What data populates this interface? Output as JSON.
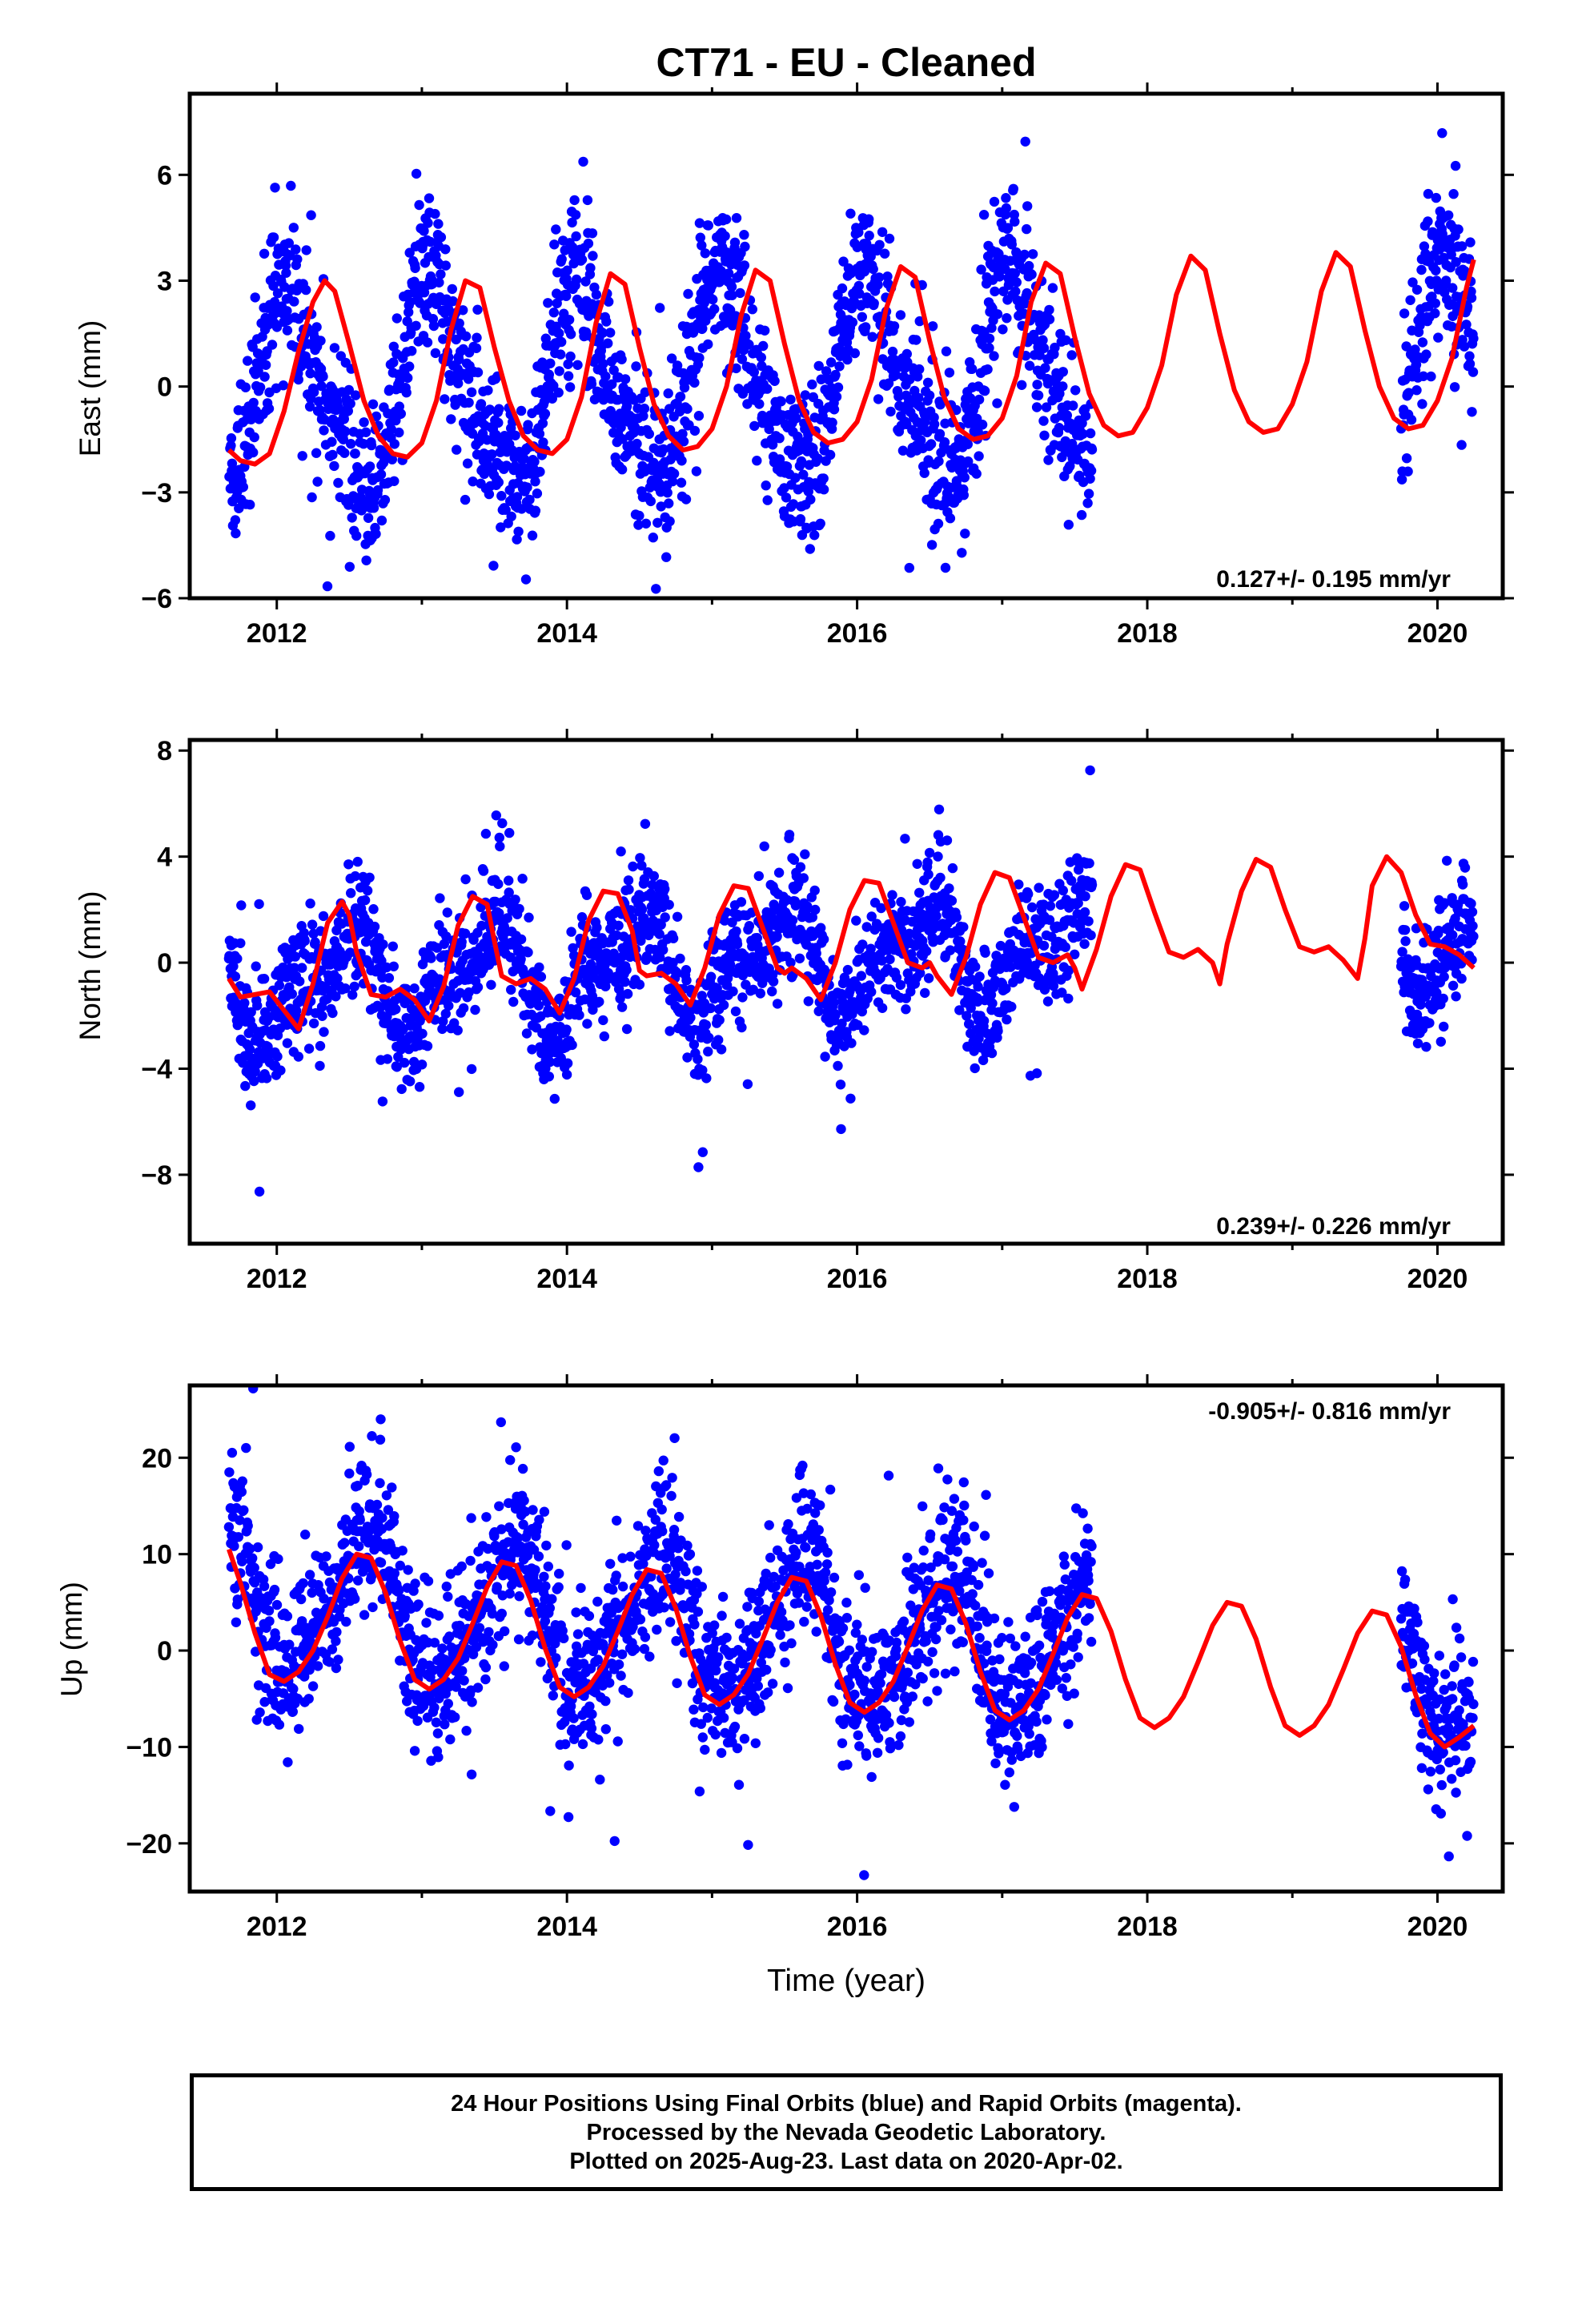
{
  "title": "CT71  - EU - Cleaned",
  "xlabel": "Time (year)",
  "footer": {
    "line1": "24 Hour Positions Using Final Orbits (blue) and Rapid Orbits (magenta).",
    "line2": "Processed by the Nevada Geodetic Laboratory.",
    "line3": "Plotted on 2025-Aug-23. Last data on 2020-Apr-02."
  },
  "colors": {
    "points": "#0000ff",
    "model": "#ff0000",
    "axes": "#000000"
  },
  "chart_data": [
    {
      "type": "scatter",
      "component": "east",
      "ylabel": "East (mm)",
      "xlim": [
        2011.4,
        2020.45
      ],
      "ylim": [
        -6,
        8.3
      ],
      "xticks": [
        2012,
        2014,
        2016,
        2018,
        2020
      ],
      "yticks": [
        -6,
        -3,
        0,
        3,
        6
      ],
      "ytick_labels": [
        "−6",
        "−3",
        "0",
        "3",
        "6"
      ],
      "rate_label": "0.127+/- 0.195 mm/yr",
      "rate_position": "bottom-right",
      "observation_segments": [
        [
          2011.67,
          2017.62
        ],
        [
          2019.75,
          2020.25
        ]
      ],
      "scatter_model": {
        "amp1": 2.7,
        "phase1": 0.08,
        "amp2": 0.55,
        "phase2": 0.0,
        "offset": 0.3,
        "trend": 0.127,
        "ref_year": 2016.0,
        "noise_sd": 1.1,
        "outlier_sd": 2.2
      },
      "fit_curve": {
        "x": [
          2011.67,
          2011.75,
          2011.85,
          2011.95,
          2012.05,
          2012.15,
          2012.25,
          2012.33,
          2012.4,
          2012.5,
          2012.6,
          2012.7,
          2012.8,
          2012.9,
          2013.0,
          2013.1,
          2013.2,
          2013.3,
          2013.4,
          2013.5,
          2013.6,
          2013.7,
          2013.8,
          2013.9,
          2014.0,
          2014.1,
          2014.2,
          2014.3,
          2014.4,
          2014.5,
          2014.6,
          2014.7,
          2014.8,
          2014.9,
          2015.0,
          2015.1,
          2015.2,
          2015.3,
          2015.4,
          2015.5,
          2015.6,
          2015.7,
          2015.8,
          2015.9,
          2016.0,
          2016.1,
          2016.2,
          2016.3,
          2016.4,
          2016.5,
          2016.6,
          2016.7,
          2016.8,
          2016.9,
          2017.0,
          2017.1,
          2017.2,
          2017.3,
          2017.4,
          2017.5,
          2017.6,
          2017.7,
          2017.8,
          2017.9,
          2018.0,
          2018.1,
          2018.2,
          2018.3,
          2018.4,
          2018.5,
          2018.6,
          2018.7,
          2018.8,
          2018.9,
          2019.0,
          2019.1,
          2019.2,
          2019.3,
          2019.4,
          2019.5,
          2019.6,
          2019.7,
          2019.8,
          2019.9,
          2020.0,
          2020.1,
          2020.2,
          2020.25
        ],
        "y": [
          -1.8,
          -2.1,
          -2.2,
          -1.9,
          -0.7,
          1.0,
          2.4,
          3.0,
          2.7,
          1.2,
          -0.4,
          -1.4,
          -1.9,
          -2.0,
          -1.6,
          -0.4,
          1.6,
          3.0,
          2.8,
          1.1,
          -0.4,
          -1.4,
          -1.8,
          -1.9,
          -1.5,
          -0.3,
          1.8,
          3.2,
          2.9,
          1.1,
          -0.5,
          -1.4,
          -1.8,
          -1.7,
          -1.2,
          0.0,
          2.0,
          3.3,
          3.0,
          1.2,
          -0.4,
          -1.3,
          -1.6,
          -1.5,
          -1.0,
          0.2,
          2.2,
          3.4,
          3.1,
          1.3,
          -0.3,
          -1.2,
          -1.5,
          -1.4,
          -0.9,
          0.3,
          2.4,
          3.5,
          3.2,
          1.4,
          -0.2,
          -1.1,
          -1.4,
          -1.3,
          -0.6,
          0.6,
          2.6,
          3.7,
          3.3,
          1.5,
          -0.1,
          -1.0,
          -1.3,
          -1.2,
          -0.5,
          0.7,
          2.7,
          3.8,
          3.4,
          1.6,
          0.0,
          -0.9,
          -1.2,
          -1.1,
          -0.4,
          0.8,
          2.8,
          3.6
        ]
      }
    },
    {
      "type": "scatter",
      "component": "north",
      "ylabel": "North (mm)",
      "xlim": [
        2011.4,
        2020.45
      ],
      "ylim": [
        -10.6,
        8.4
      ],
      "xticks": [
        2012,
        2014,
        2016,
        2018,
        2020
      ],
      "yticks": [
        -8,
        -4,
        0,
        4,
        8
      ],
      "ytick_labels": [
        "−8",
        "−4",
        "0",
        "4",
        "8"
      ],
      "rate_label": "0.239+/- 0.226 mm/yr",
      "rate_position": "bottom-right",
      "observation_segments": [
        [
          2011.67,
          2017.62
        ],
        [
          2019.75,
          2020.25
        ]
      ],
      "scatter_model": {
        "amp1": 1.6,
        "phase1": 0.45,
        "amp2": 1.0,
        "phase2": 0.1,
        "offset": 0.1,
        "trend": 0.239,
        "ref_year": 2016.0,
        "noise_sd": 1.1,
        "outlier_sd": 2.4
      },
      "fit_curve": {
        "x": [
          2011.67,
          2011.75,
          2011.85,
          2011.95,
          2012.05,
          2012.15,
          2012.25,
          2012.35,
          2012.45,
          2012.5,
          2012.55,
          2012.65,
          2012.75,
          2012.85,
          2012.95,
          2013.05,
          2013.15,
          2013.25,
          2013.35,
          2013.45,
          2013.5,
          2013.55,
          2013.65,
          2013.75,
          2013.85,
          2013.95,
          2014.05,
          2014.15,
          2014.25,
          2014.35,
          2014.45,
          2014.5,
          2014.55,
          2014.65,
          2014.75,
          2014.85,
          2014.95,
          2015.05,
          2015.15,
          2015.25,
          2015.35,
          2015.45,
          2015.5,
          2015.55,
          2015.65,
          2015.75,
          2015.85,
          2015.95,
          2016.05,
          2016.15,
          2016.25,
          2016.35,
          2016.45,
          2016.5,
          2016.55,
          2016.65,
          2016.75,
          2016.85,
          2016.95,
          2017.05,
          2017.15,
          2017.25,
          2017.35,
          2017.45,
          2017.5,
          2017.55,
          2017.65,
          2017.75,
          2017.85,
          2017.95,
          2018.05,
          2018.15,
          2018.25,
          2018.35,
          2018.45,
          2018.5,
          2018.55,
          2018.65,
          2018.75,
          2018.85,
          2018.95,
          2019.05,
          2019.15,
          2019.25,
          2019.35,
          2019.45,
          2019.5,
          2019.55,
          2019.65,
          2019.75,
          2019.85,
          2019.95,
          2020.05,
          2020.15,
          2020.25
        ],
        "y": [
          -0.6,
          -1.3,
          -1.2,
          -1.1,
          -1.8,
          -2.5,
          -0.8,
          1.5,
          2.3,
          1.8,
          0.4,
          -1.2,
          -1.3,
          -1.0,
          -1.4,
          -2.2,
          -0.9,
          1.4,
          2.5,
          2.2,
          0.8,
          -0.5,
          -0.8,
          -0.6,
          -1.0,
          -1.9,
          -0.6,
          1.6,
          2.7,
          2.6,
          1.2,
          -0.3,
          -0.5,
          -0.4,
          -0.8,
          -1.6,
          -0.2,
          1.8,
          2.9,
          2.8,
          1.3,
          -0.2,
          -0.4,
          -0.2,
          -0.6,
          -1.4,
          0.0,
          2.0,
          3.1,
          3.0,
          1.5,
          0.0,
          -0.2,
          0.0,
          -0.5,
          -1.2,
          0.2,
          2.2,
          3.4,
          3.2,
          1.7,
          0.2,
          0.0,
          0.3,
          -0.2,
          -1.0,
          0.5,
          2.5,
          3.7,
          3.5,
          1.9,
          0.4,
          0.2,
          0.5,
          0.0,
          -0.8,
          0.7,
          2.7,
          3.9,
          3.6,
          2.0,
          0.6,
          0.4,
          0.6,
          0.1,
          -0.6,
          0.9,
          2.9,
          4.0,
          3.4,
          1.8,
          0.7,
          0.6,
          0.3,
          -0.2
        ]
      }
    },
    {
      "type": "scatter",
      "component": "up",
      "ylabel": "Up (mm)",
      "xlim": [
        2011.4,
        2020.45
      ],
      "ylim": [
        -25.0,
        27.5
      ],
      "xticks": [
        2012,
        2014,
        2016,
        2018,
        2020
      ],
      "yticks": [
        -20,
        -10,
        0,
        10,
        20
      ],
      "ytick_labels": [
        "−20",
        "−10",
        "0",
        "10",
        "20"
      ],
      "rate_label": "-0.905+/- 0.816 mm/yr",
      "rate_position": "top-right",
      "observation_segments": [
        [
          2011.67,
          2017.62
        ],
        [
          2019.75,
          2020.25
        ]
      ],
      "scatter_model": {
        "amp1": 7.0,
        "phase1": 0.62,
        "amp2": 1.5,
        "phase2": 0.2,
        "offset": 1.5,
        "trend": -0.905,
        "ref_year": 2016.0,
        "noise_sd": 4.0,
        "outlier_sd": 8.0
      },
      "fit_curve": {
        "x": [
          2011.67,
          2011.75,
          2011.85,
          2011.95,
          2012.05,
          2012.15,
          2012.25,
          2012.35,
          2012.45,
          2012.55,
          2012.65,
          2012.75,
          2012.85,
          2012.95,
          2013.05,
          2013.15,
          2013.25,
          2013.35,
          2013.45,
          2013.55,
          2013.65,
          2013.75,
          2013.85,
          2013.95,
          2014.05,
          2014.15,
          2014.25,
          2014.35,
          2014.45,
          2014.55,
          2014.65,
          2014.75,
          2014.85,
          2014.95,
          2015.05,
          2015.15,
          2015.25,
          2015.35,
          2015.45,
          2015.55,
          2015.65,
          2015.75,
          2015.85,
          2015.95,
          2016.05,
          2016.15,
          2016.25,
          2016.35,
          2016.45,
          2016.55,
          2016.65,
          2016.75,
          2016.85,
          2016.95,
          2017.05,
          2017.15,
          2017.25,
          2017.35,
          2017.45,
          2017.55,
          2017.65,
          2017.75,
          2017.85,
          2017.95,
          2018.05,
          2018.15,
          2018.25,
          2018.35,
          2018.45,
          2018.55,
          2018.65,
          2018.75,
          2018.85,
          2018.95,
          2019.05,
          2019.15,
          2019.25,
          2019.35,
          2019.45,
          2019.55,
          2019.65,
          2019.75,
          2019.85,
          2019.95,
          2020.05,
          2020.15,
          2020.25
        ],
        "y": [
          10.5,
          7.0,
          1.8,
          -2.5,
          -3.2,
          -2.2,
          0.0,
          3.5,
          7.5,
          10.0,
          9.6,
          6.0,
          1.0,
          -3.0,
          -4.0,
          -3.0,
          -0.8,
          2.8,
          6.6,
          9.2,
          8.8,
          5.2,
          0.2,
          -3.8,
          -4.8,
          -3.8,
          -1.6,
          2.0,
          5.8,
          8.4,
          8.0,
          4.4,
          -0.6,
          -4.6,
          -5.6,
          -4.6,
          -2.4,
          1.2,
          5.0,
          7.6,
          7.2,
          3.6,
          -1.4,
          -5.4,
          -6.4,
          -5.4,
          -3.2,
          0.4,
          4.2,
          6.8,
          6.4,
          2.8,
          -2.2,
          -6.2,
          -7.2,
          -6.2,
          -4.0,
          -0.4,
          3.4,
          5.8,
          5.4,
          2.0,
          -3.0,
          -7.0,
          -8.0,
          -7.0,
          -4.8,
          -1.2,
          2.6,
          5.0,
          4.6,
          1.2,
          -3.8,
          -7.8,
          -8.8,
          -7.8,
          -5.6,
          -2.0,
          1.8,
          4.1,
          3.7,
          0.4,
          -4.6,
          -8.6,
          -10.0,
          -9.0,
          -7.8
        ]
      }
    }
  ]
}
